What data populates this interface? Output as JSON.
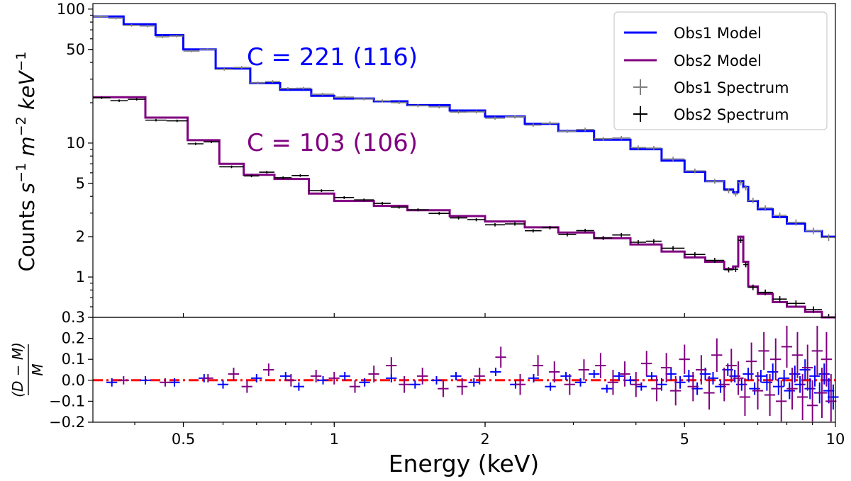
{
  "chart_data": {
    "type": "line",
    "xscale": "log",
    "xlabel": "Energy (keV)",
    "xlim": [
      0.33,
      10
    ],
    "xticks": [
      {
        "value": 0.5,
        "label": "0.5"
      },
      {
        "value": 1,
        "label": "1"
      },
      {
        "value": 2,
        "label": "2"
      },
      {
        "value": 5,
        "label": "5"
      },
      {
        "value": 10,
        "label": "10"
      }
    ],
    "top_panel": {
      "ylabel": "Counts s⁻¹ m⁻² keV⁻¹",
      "ylabel_parts": {
        "base": "Counts ",
        "s": "s",
        "s_exp": "−1",
        "m": " m",
        "m_exp": "−2",
        "kev": " keV",
        "kev_exp": "−1"
      },
      "yscale": "log",
      "ylim": [
        0.5,
        110
      ],
      "yticks": [
        {
          "value": 1,
          "label": "1"
        },
        {
          "value": 2,
          "label": "2"
        },
        {
          "value": 5,
          "label": "5"
        },
        {
          "value": 10,
          "label": "10"
        },
        {
          "value": 50,
          "label": "50"
        },
        {
          "value": 100,
          "label": "100"
        }
      ],
      "annotations": [
        {
          "text": "C = 221 (116)",
          "color": "#0000ff",
          "x": 0.68,
          "y": 40
        },
        {
          "text": "C = 103 (106)",
          "color": "#800080",
          "x": 0.68,
          "y": 10
        }
      ],
      "legend_position": "top-right",
      "legend": [
        {
          "label": "Obs1 Model",
          "kind": "line",
          "color": "#0000ff"
        },
        {
          "label": "Obs2 Model",
          "kind": "line",
          "color": "#800080"
        },
        {
          "label": "Obs1 Spectrum",
          "kind": "cross",
          "color": "#808080"
        },
        {
          "label": "Obs2 Spectrum",
          "kind": "cross",
          "color": "#000000"
        }
      ],
      "series": [
        {
          "name": "Obs1 Model",
          "color": "#0000ff",
          "bins": [
            0.33,
            0.38,
            0.44,
            0.5,
            0.58,
            0.68,
            0.78,
            0.9,
            1.0,
            1.2,
            1.4,
            1.7,
            2.0,
            2.4,
            2.8,
            3.3,
            3.9,
            4.5,
            5.0,
            5.5,
            6.0,
            6.25,
            6.4,
            6.55,
            6.7,
            7.0,
            7.5,
            8.0,
            8.7,
            9.4,
            10
          ],
          "values": [
            88,
            77,
            64,
            50,
            36,
            28,
            25,
            22.5,
            21.5,
            20.5,
            19.2,
            17.5,
            15.8,
            13.9,
            12.3,
            10.6,
            9.0,
            7.4,
            6.1,
            5.2,
            4.5,
            4.3,
            5.2,
            4.7,
            3.7,
            3.2,
            2.8,
            2.5,
            2.2,
            2.0
          ]
        },
        {
          "name": "Obs2 Model",
          "color": "#800080",
          "bins": [
            0.33,
            0.42,
            0.51,
            0.59,
            0.66,
            0.76,
            0.89,
            1.0,
            1.2,
            1.4,
            1.7,
            2.0,
            2.4,
            2.8,
            3.3,
            3.9,
            4.5,
            5.0,
            5.5,
            6.0,
            6.25,
            6.4,
            6.55,
            6.7,
            7.0,
            7.5,
            8.0,
            8.7,
            9.4,
            10
          ],
          "values": [
            22,
            15.5,
            10.5,
            7.0,
            5.8,
            5.4,
            4.2,
            3.7,
            3.4,
            3.15,
            2.85,
            2.6,
            2.35,
            2.15,
            1.95,
            1.75,
            1.55,
            1.4,
            1.3,
            1.15,
            1.2,
            2.0,
            1.3,
            0.85,
            0.75,
            0.65,
            0.6,
            0.55,
            0.5
          ]
        }
      ],
      "spectra": [
        {
          "name": "Obs1 Spectrum",
          "color": "#808080",
          "model": "Obs1 Model",
          "scatter": 0.03
        },
        {
          "name": "Obs2 Spectrum",
          "color": "#000000",
          "model": "Obs2 Model",
          "scatter": 0.06
        }
      ]
    },
    "bottom_panel": {
      "ylabel_num": "(D − M)",
      "ylabel_den": "M",
      "ylim": [
        -0.2,
        0.3
      ],
      "yticks": [
        {
          "value": -0.2,
          "label": "−0.2"
        },
        {
          "value": -0.1,
          "label": "−0.1"
        },
        {
          "value": 0.0,
          "label": "0.0"
        },
        {
          "value": 0.1,
          "label": "0.1"
        },
        {
          "value": 0.2,
          "label": "0.2"
        },
        {
          "value": 0.3,
          "label": "0.3"
        }
      ],
      "reference_line": {
        "value": 0.0,
        "color": "#ff0000",
        "style": "dash-dot"
      },
      "residuals": [
        {
          "name": "Obs1 residuals",
          "color": "#0000ff",
          "points": [
            [
              0.36,
              -0.01,
              0.02
            ],
            [
              0.42,
              0.0,
              0.02
            ],
            [
              0.48,
              -0.01,
              0.02
            ],
            [
              0.55,
              0.01,
              0.02
            ],
            [
              0.6,
              -0.02,
              0.02
            ],
            [
              0.7,
              0.01,
              0.02
            ],
            [
              0.8,
              0.02,
              0.02
            ],
            [
              0.85,
              -0.03,
              0.02
            ],
            [
              0.95,
              0.0,
              0.02
            ],
            [
              1.05,
              0.02,
              0.02
            ],
            [
              1.15,
              -0.01,
              0.02
            ],
            [
              1.3,
              0.01,
              0.02
            ],
            [
              1.45,
              -0.02,
              0.02
            ],
            [
              1.6,
              0.0,
              0.02
            ],
            [
              1.75,
              0.02,
              0.02
            ],
            [
              1.9,
              -0.01,
              0.02
            ],
            [
              2.1,
              0.04,
              0.02
            ],
            [
              2.3,
              -0.02,
              0.02
            ],
            [
              2.5,
              0.01,
              0.02
            ],
            [
              2.7,
              -0.03,
              0.02
            ],
            [
              2.9,
              0.02,
              0.02
            ],
            [
              3.1,
              -0.01,
              0.02
            ],
            [
              3.3,
              0.03,
              0.02
            ],
            [
              3.5,
              -0.04,
              0.02
            ],
            [
              3.7,
              0.02,
              0.02
            ],
            [
              3.9,
              0.0,
              0.02
            ],
            [
              4.1,
              -0.03,
              0.02
            ],
            [
              4.3,
              0.02,
              0.02
            ],
            [
              4.5,
              -0.02,
              0.03
            ],
            [
              4.7,
              0.03,
              0.03
            ],
            [
              4.9,
              -0.01,
              0.03
            ],
            [
              5.1,
              0.02,
              0.03
            ],
            [
              5.3,
              -0.04,
              0.03
            ],
            [
              5.5,
              0.03,
              0.03
            ],
            [
              5.7,
              0.01,
              0.03
            ],
            [
              5.9,
              -0.03,
              0.03
            ],
            [
              6.1,
              0.05,
              0.03
            ],
            [
              6.3,
              0.02,
              0.03
            ],
            [
              6.5,
              -0.02,
              0.03
            ],
            [
              6.7,
              0.03,
              0.03
            ],
            [
              6.9,
              -0.04,
              0.03
            ],
            [
              7.1,
              0.02,
              0.03
            ],
            [
              7.3,
              -0.01,
              0.04
            ],
            [
              7.5,
              0.04,
              0.04
            ],
            [
              7.7,
              -0.03,
              0.04
            ],
            [
              7.9,
              0.01,
              0.04
            ],
            [
              8.1,
              -0.05,
              0.04
            ],
            [
              8.3,
              0.03,
              0.04
            ],
            [
              8.5,
              -0.02,
              0.04
            ],
            [
              8.7,
              0.05,
              0.05
            ],
            [
              8.9,
              -0.04,
              0.05
            ],
            [
              9.1,
              0.02,
              0.05
            ],
            [
              9.3,
              -0.06,
              0.05
            ],
            [
              9.5,
              0.03,
              0.05
            ],
            [
              9.7,
              -0.05,
              0.06
            ],
            [
              9.9,
              -0.08,
              0.06
            ]
          ]
        },
        {
          "name": "Obs2 residuals",
          "color": "#800080",
          "points": [
            [
              0.38,
              0.0,
              0.02
            ],
            [
              0.46,
              -0.01,
              0.02
            ],
            [
              0.56,
              0.01,
              0.02
            ],
            [
              0.63,
              0.03,
              0.03
            ],
            [
              0.67,
              -0.03,
              0.03
            ],
            [
              0.74,
              0.05,
              0.03
            ],
            [
              0.82,
              0.0,
              0.03
            ],
            [
              0.92,
              0.02,
              0.03
            ],
            [
              1.0,
              0.01,
              0.03
            ],
            [
              1.1,
              -0.03,
              0.03
            ],
            [
              1.2,
              0.03,
              0.04
            ],
            [
              1.3,
              0.07,
              0.04
            ],
            [
              1.38,
              -0.02,
              0.04
            ],
            [
              1.5,
              0.02,
              0.04
            ],
            [
              1.65,
              -0.04,
              0.04
            ],
            [
              1.8,
              -0.03,
              0.04
            ],
            [
              1.95,
              0.02,
              0.04
            ],
            [
              2.15,
              0.11,
              0.05
            ],
            [
              2.35,
              -0.02,
              0.05
            ],
            [
              2.55,
              0.07,
              0.05
            ],
            [
              2.75,
              0.04,
              0.05
            ],
            [
              2.95,
              -0.02,
              0.05
            ],
            [
              3.15,
              0.05,
              0.05
            ],
            [
              3.4,
              0.07,
              0.06
            ],
            [
              3.6,
              -0.01,
              0.06
            ],
            [
              3.8,
              0.03,
              0.06
            ],
            [
              4.0,
              -0.02,
              0.06
            ],
            [
              4.2,
              0.08,
              0.06
            ],
            [
              4.4,
              -0.04,
              0.06
            ],
            [
              4.6,
              0.06,
              0.07
            ],
            [
              4.8,
              -0.05,
              0.07
            ],
            [
              5.0,
              0.1,
              0.07
            ],
            [
              5.2,
              -0.03,
              0.07
            ],
            [
              5.4,
              0.05,
              0.07
            ],
            [
              5.6,
              -0.06,
              0.08
            ],
            [
              5.8,
              0.12,
              0.08
            ],
            [
              6.0,
              -0.02,
              0.08
            ],
            [
              6.2,
              0.07,
              0.08
            ],
            [
              6.4,
              0.01,
              0.08
            ],
            [
              6.6,
              -0.08,
              0.09
            ],
            [
              6.8,
              0.09,
              0.09
            ],
            [
              7.0,
              -0.05,
              0.09
            ],
            [
              7.2,
              0.14,
              0.09
            ],
            [
              7.4,
              -0.07,
              0.1
            ],
            [
              7.6,
              0.1,
              0.1
            ],
            [
              7.8,
              -0.1,
              0.1
            ],
            [
              8.0,
              0.16,
              0.1
            ],
            [
              8.2,
              -0.04,
              0.1
            ],
            [
              8.4,
              0.12,
              0.11
            ],
            [
              8.6,
              -0.08,
              0.11
            ],
            [
              8.8,
              0.06,
              0.11
            ],
            [
              9.0,
              -0.12,
              0.12
            ],
            [
              9.2,
              0.14,
              0.12
            ],
            [
              9.4,
              -0.06,
              0.12
            ],
            [
              9.6,
              0.1,
              0.13
            ],
            [
              9.8,
              -0.1,
              0.13
            ]
          ]
        }
      ]
    }
  }
}
